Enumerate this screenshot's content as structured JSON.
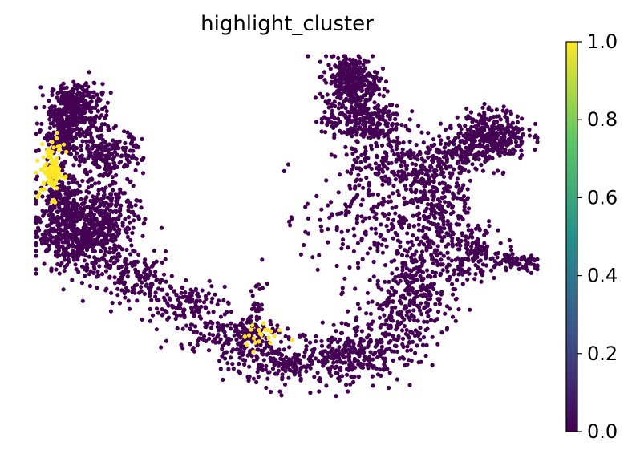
{
  "chart_data": {
    "type": "scatter",
    "title": "highlight_cluster",
    "xlabel": "",
    "ylabel": "",
    "axes_visible": false,
    "colormap": "viridis",
    "colormap_stops": [
      "#440154",
      "#3b528b",
      "#21918c",
      "#5ec962",
      "#fde725"
    ],
    "value_range": [
      0.0,
      1.0
    ],
    "background_value": 0.0,
    "highlight_value": 1.0,
    "background_color": "#440154",
    "highlight_color": "#fde725",
    "colorbar": {
      "position": "right",
      "ticks": [
        {
          "value": 0.0,
          "label": "0.0"
        },
        {
          "value": 0.2,
          "label": "0.2"
        },
        {
          "value": 0.4,
          "label": "0.4"
        },
        {
          "value": 0.6,
          "label": "0.6"
        },
        {
          "value": 0.8,
          "label": "0.8"
        },
        {
          "value": 1.0,
          "label": "1.0"
        }
      ]
    },
    "embedding_range": {
      "x": [
        0,
        100
      ],
      "y": [
        0,
        100
      ]
    },
    "regions": [
      {
        "value": 0,
        "count": 300,
        "cx": 8,
        "cy": 86,
        "sx": 2.6,
        "sy": 3.2
      },
      {
        "value": 0,
        "count": 220,
        "cx": 5,
        "cy": 78,
        "sx": 2.0,
        "sy": 3.5
      },
      {
        "value": 0,
        "count": 240,
        "cx": 14,
        "cy": 72,
        "sx": 3.5,
        "sy": 4.0
      },
      {
        "value": 0,
        "count": 520,
        "cx": 9,
        "cy": 50,
        "sx": 4.5,
        "sy": 5.5
      },
      {
        "value": 0,
        "count": 200,
        "cx": 5,
        "cy": 58,
        "sx": 2.2,
        "sy": 5.0
      },
      {
        "value": 0,
        "count": 160,
        "cx": 15,
        "cy": 56,
        "sx": 3.0,
        "sy": 5.0
      },
      {
        "value": 0,
        "count": 130,
        "cx": 20,
        "cy": 38,
        "sx": 4.0,
        "sy": 3.0
      },
      {
        "value": 0,
        "count": 130,
        "cx": 29,
        "cy": 31,
        "sx": 4.5,
        "sy": 2.6
      },
      {
        "value": 0,
        "count": 180,
        "cx": 39,
        "cy": 22,
        "sx": 5.5,
        "sy": 2.8
      },
      {
        "value": 0,
        "count": 220,
        "cx": 51,
        "cy": 14,
        "sx": 6.0,
        "sy": 3.3
      },
      {
        "value": 0,
        "count": 200,
        "cx": 63,
        "cy": 16,
        "sx": 5.0,
        "sy": 3.6
      },
      {
        "value": 0,
        "count": 230,
        "cx": 72,
        "cy": 27,
        "sx": 4.5,
        "sy": 6.0
      },
      {
        "value": 0,
        "count": 240,
        "cx": 78,
        "cy": 42,
        "sx": 3.6,
        "sy": 7.5
      },
      {
        "value": 0,
        "count": 230,
        "cx": 80,
        "cy": 60,
        "sx": 4.0,
        "sy": 6.5
      },
      {
        "value": 0,
        "count": 180,
        "cx": 65,
        "cy": 55,
        "sx": 6.0,
        "sy": 8.0
      },
      {
        "value": 0,
        "count": 160,
        "cx": 72,
        "cy": 70,
        "sx": 5.0,
        "sy": 4.5
      },
      {
        "value": 0,
        "count": 330,
        "cx": 63,
        "cy": 93,
        "sx": 2.6,
        "sy": 3.5
      },
      {
        "value": 0,
        "count": 260,
        "cx": 65,
        "cy": 82,
        "sx": 4.0,
        "sy": 3.5
      },
      {
        "value": 0,
        "count": 320,
        "cx": 91,
        "cy": 78,
        "sx": 3.5,
        "sy": 3.5
      },
      {
        "value": 0,
        "count": 130,
        "cx": 84,
        "cy": 72,
        "sx": 3.5,
        "sy": 3.0
      },
      {
        "value": 0,
        "count": 80,
        "cx": 96,
        "cy": 42,
        "sx": 3.0,
        "sy": 1.4
      },
      {
        "value": 0,
        "count": 120,
        "cx": 87,
        "cy": 46,
        "sx": 2.5,
        "sy": 4.0
      },
      {
        "value": 0,
        "count": 30,
        "cx": 44,
        "cy": 30,
        "sx": 0.9,
        "sy": 3.0
      },
      {
        "value": 1,
        "count": 90,
        "cx": 3.2,
        "cy": 68,
        "sx": 1.2,
        "sy": 3.8
      },
      {
        "value": 1,
        "count": 22,
        "cx": 44,
        "cy": 22,
        "sx": 2.6,
        "sy": 2.0
      }
    ]
  }
}
